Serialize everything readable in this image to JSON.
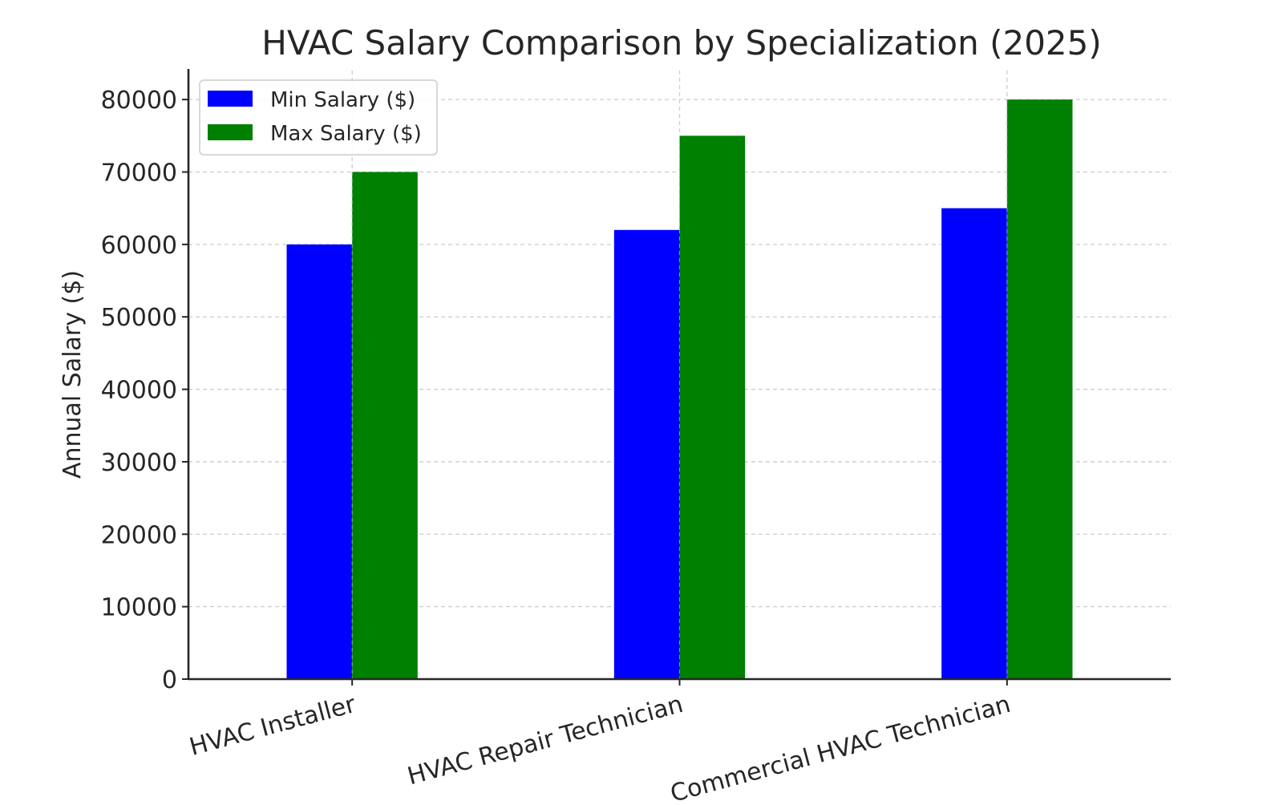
{
  "chart_data": {
    "type": "bar",
    "title": "HVAC Salary Comparison by Specialization (2025)",
    "xlabel": "",
    "ylabel": "Annual Salary ($)",
    "categories": [
      "HVAC Installer",
      "HVAC Repair Technician",
      "Commercial HVAC Technician"
    ],
    "series": [
      {
        "name": "Min Salary ($)",
        "values": [
          60000,
          62000,
          65000
        ],
        "color": "#0000ff"
      },
      {
        "name": "Max Salary ($)",
        "values": [
          70000,
          75000,
          80000
        ],
        "color": "#008000"
      }
    ],
    "ylim": [
      0,
      84000
    ],
    "yticks": [
      0,
      10000,
      20000,
      30000,
      40000,
      50000,
      60000,
      70000,
      80000
    ],
    "ytick_labels": [
      "0",
      "10000",
      "20000",
      "30000",
      "40000",
      "50000",
      "60000",
      "70000",
      "80000"
    ],
    "grid": true,
    "legend_position": "top-left"
  }
}
